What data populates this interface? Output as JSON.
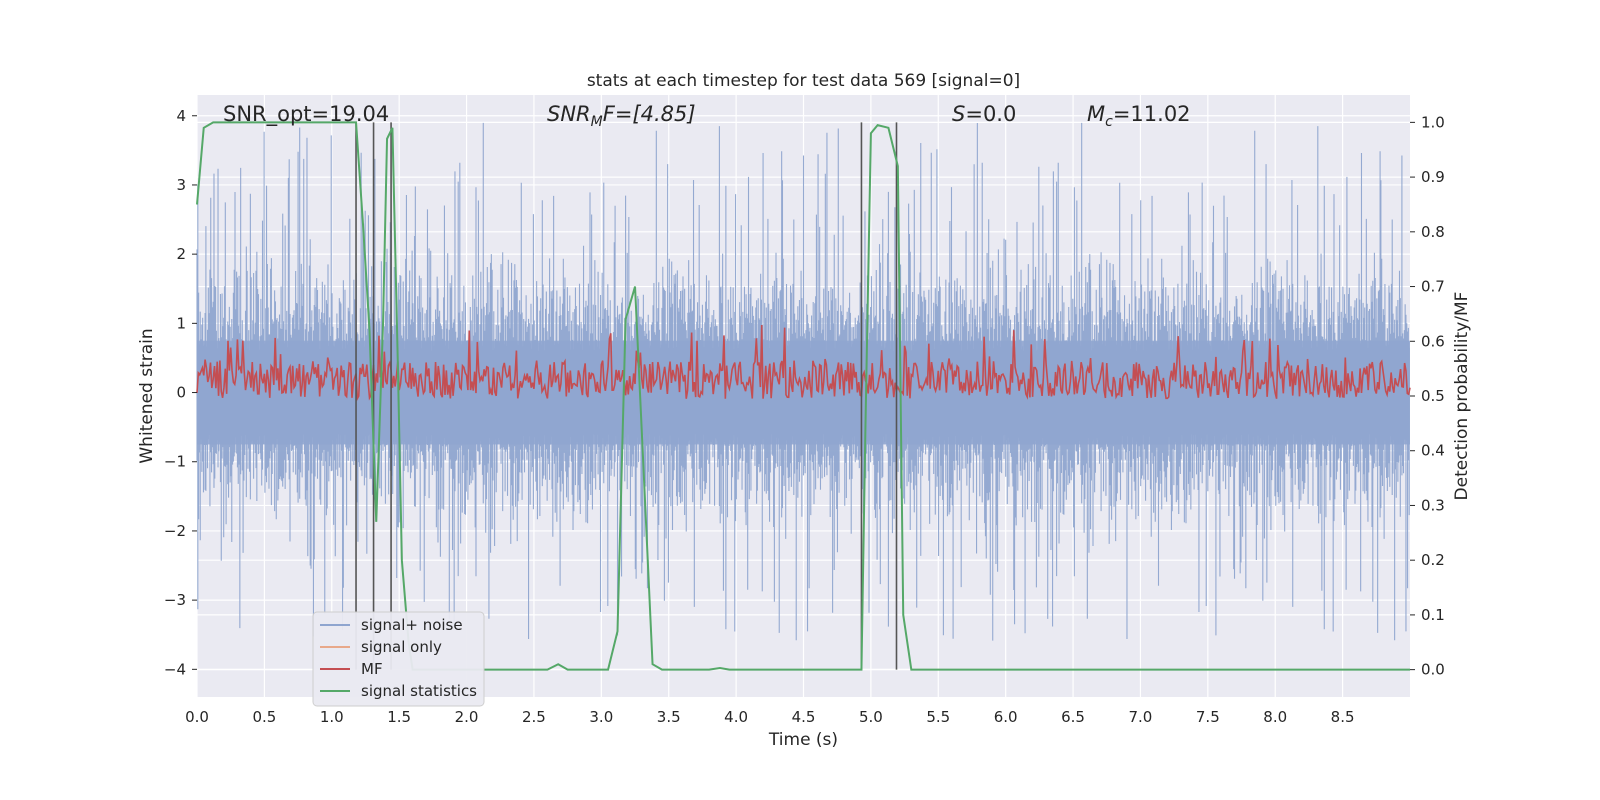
{
  "chart_data": {
    "type": "line",
    "title": "stats at each timestep for test data 569 [signal=0]",
    "xlabel": "Time (s)",
    "ylabel_left": "Whitened strain",
    "ylabel_right": "Detection probability/MF",
    "xlim": [
      0,
      9.0
    ],
    "ylim_left": [
      -4.4,
      4.3
    ],
    "ylim_right": [
      -0.05,
      1.05
    ],
    "x_ticks": [
      "0.0",
      "0.5",
      "1.0",
      "1.5",
      "2.0",
      "2.5",
      "3.0",
      "3.5",
      "4.0",
      "4.5",
      "5.0",
      "5.5",
      "6.0",
      "6.5",
      "7.0",
      "7.5",
      "8.0",
      "8.5"
    ],
    "y_ticks_left": [
      "−4",
      "−3",
      "−2",
      "−1",
      "0",
      "1",
      "2",
      "3",
      "4"
    ],
    "y_ticks_right": [
      "0.0",
      "0.1",
      "0.2",
      "0.3",
      "0.4",
      "0.5",
      "0.6",
      "0.7",
      "0.8",
      "0.9",
      "1.0"
    ],
    "grid": true,
    "legend_placement": "lower-left",
    "annotations": {
      "snr_opt": "SNR_opt=19.04",
      "snr_mf_main": "SNR",
      "snr_mf_sub": "M",
      "snr_mf_rest": "F=[4.85]",
      "s_main": "S",
      "s_rest": "=0.0",
      "mc_main": "M",
      "mc_sub": "c",
      "mc_rest": "=11.02"
    },
    "series": [
      {
        "name": "signal+ noise",
        "color": "#8fa5cf",
        "axis": "left",
        "envelope_positive": 2.3,
        "envelope_negative": -1.9,
        "peak_max": 3.95,
        "peak_min": -3.6
      },
      {
        "name": "signal only",
        "color": "#e8a88a",
        "axis": "left",
        "values": []
      },
      {
        "name": "MF",
        "color": "#c44e52",
        "axis": "right",
        "baseline": 0.53,
        "band": [
          0.5,
          0.61
        ]
      },
      {
        "name": "signal statistics",
        "color": "#55a868",
        "axis": "right",
        "points": [
          [
            0.0,
            0.85
          ],
          [
            0.05,
            0.99
          ],
          [
            0.12,
            1.0
          ],
          [
            1.1,
            1.0
          ],
          [
            1.18,
            1.0
          ],
          [
            1.23,
            0.82
          ],
          [
            1.28,
            0.62
          ],
          [
            1.33,
            0.27
          ],
          [
            1.38,
            0.63
          ],
          [
            1.41,
            0.97
          ],
          [
            1.45,
            0.99
          ],
          [
            1.49,
            0.56
          ],
          [
            1.52,
            0.2
          ],
          [
            1.57,
            0.05
          ],
          [
            1.6,
            0.0
          ],
          [
            2.6,
            0.0
          ],
          [
            2.68,
            0.01
          ],
          [
            2.75,
            0.0
          ],
          [
            3.05,
            0.0
          ],
          [
            3.12,
            0.07
          ],
          [
            3.18,
            0.64
          ],
          [
            3.25,
            0.7
          ],
          [
            3.32,
            0.33
          ],
          [
            3.38,
            0.01
          ],
          [
            3.45,
            0.0
          ],
          [
            3.8,
            0.0
          ],
          [
            3.88,
            0.003
          ],
          [
            3.95,
            0.0
          ],
          [
            4.93,
            0.0
          ],
          [
            4.96,
            0.45
          ],
          [
            5.0,
            0.98
          ],
          [
            5.05,
            0.995
          ],
          [
            5.13,
            0.99
          ],
          [
            5.2,
            0.92
          ],
          [
            5.24,
            0.1
          ],
          [
            5.3,
            0.0
          ],
          [
            9.0,
            0.0
          ]
        ]
      }
    ],
    "vertical_markers": [
      1.18,
      1.31,
      1.44,
      4.93,
      5.19
    ]
  }
}
